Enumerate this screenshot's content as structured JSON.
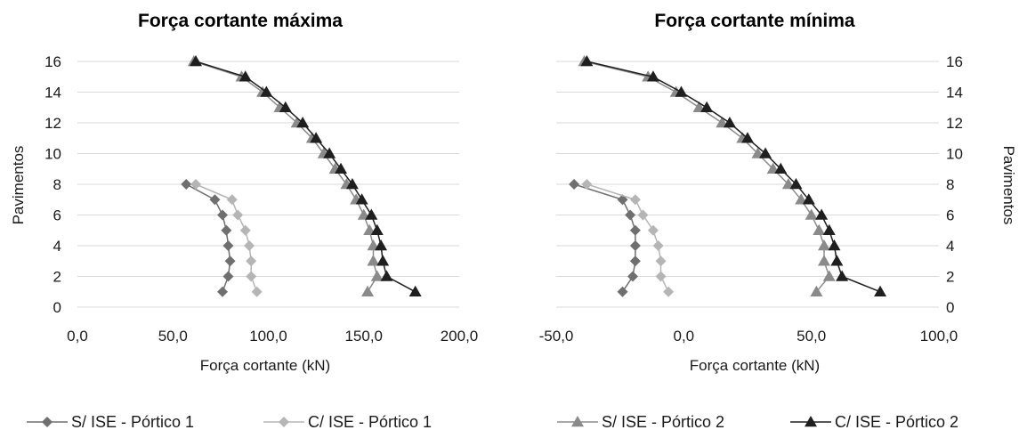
{
  "chart_data": [
    {
      "type": "line",
      "title": "Força cortante máxima",
      "xlabel": "Força cortante (kN)",
      "ylabel": "Pavimentos",
      "xlim": [
        0,
        200
      ],
      "ylim": [
        0,
        16
      ],
      "x_ticks": [
        "0,0",
        "50,0",
        "100,0",
        "150,0",
        "200,0"
      ],
      "y_ticks": [
        "0",
        "2",
        "4",
        "6",
        "8",
        "10",
        "12",
        "14",
        "16"
      ],
      "grid": "horizontal",
      "series": [
        {
          "name": "S/ ISE - Pórtico 1",
          "marker": "diamond",
          "color": "#6f6f6f",
          "points": [
            [
              76,
              1
            ],
            [
              79,
              2
            ],
            [
              80,
              3
            ],
            [
              79,
              4
            ],
            [
              78,
              5
            ],
            [
              76,
              6
            ],
            [
              72,
              7
            ],
            [
              57,
              8
            ]
          ]
        },
        {
          "name": "C/ ISE - Pórtico 1",
          "marker": "diamond",
          "color": "#b5b5b5",
          "points": [
            [
              94,
              1
            ],
            [
              91,
              2
            ],
            [
              91,
              3
            ],
            [
              90,
              4
            ],
            [
              88,
              5
            ],
            [
              84,
              6
            ],
            [
              81,
              7
            ],
            [
              62,
              8
            ]
          ]
        },
        {
          "name": "S/ ISE - Pórtico 2",
          "marker": "triangle",
          "color": "#8a8a8a",
          "points": [
            [
              152,
              1
            ],
            [
              157,
              2
            ],
            [
              155,
              3
            ],
            [
              155,
              4
            ],
            [
              153,
              5
            ],
            [
              150,
              6
            ],
            [
              146,
              7
            ],
            [
              141,
              8
            ],
            [
              135,
              9
            ],
            [
              129,
              10
            ],
            [
              123,
              11
            ],
            [
              115,
              12
            ],
            [
              106,
              13
            ],
            [
              97,
              14
            ],
            [
              86,
              15
            ],
            [
              61,
              16
            ]
          ]
        },
        {
          "name": "C/ ISE - Pórtico 2",
          "marker": "triangle",
          "color": "#1f1f1f",
          "points": [
            [
              177,
              1
            ],
            [
              162,
              2
            ],
            [
              160,
              3
            ],
            [
              159,
              4
            ],
            [
              157,
              5
            ],
            [
              154,
              6
            ],
            [
              149,
              7
            ],
            [
              144,
              8
            ],
            [
              138,
              9
            ],
            [
              132,
              10
            ],
            [
              125,
              11
            ],
            [
              118,
              12
            ],
            [
              109,
              13
            ],
            [
              99,
              14
            ],
            [
              88,
              15
            ],
            [
              62,
              16
            ]
          ]
        }
      ]
    },
    {
      "type": "line",
      "title": "Força cortante mínima",
      "xlabel": "Força cortante (kN)",
      "ylabel": "Pavimentos",
      "xlim": [
        -50,
        100
      ],
      "ylim": [
        0,
        16
      ],
      "x_ticks": [
        "-50,0",
        "0,0",
        "50,0",
        "100,0"
      ],
      "y_ticks": [
        "0",
        "2",
        "4",
        "6",
        "8",
        "10",
        "12",
        "14",
        "16"
      ],
      "grid": "horizontal",
      "series": [
        {
          "name": "S/ ISE - Pórtico 1",
          "marker": "diamond",
          "color": "#6f6f6f",
          "points": [
            [
              -24,
              1
            ],
            [
              -20,
              2
            ],
            [
              -19,
              3
            ],
            [
              -19,
              4
            ],
            [
              -19,
              5
            ],
            [
              -21,
              6
            ],
            [
              -24,
              7
            ],
            [
              -43,
              8
            ]
          ]
        },
        {
          "name": "C/ ISE - Pórtico 1",
          "marker": "diamond",
          "color": "#b5b5b5",
          "points": [
            [
              -6,
              1
            ],
            [
              -9,
              2
            ],
            [
              -9,
              3
            ],
            [
              -10,
              4
            ],
            [
              -12,
              5
            ],
            [
              -16,
              6
            ],
            [
              -19,
              7
            ],
            [
              -38,
              8
            ]
          ]
        },
        {
          "name": "S/ ISE - Pórtico 2",
          "marker": "triangle",
          "color": "#8a8a8a",
          "points": [
            [
              52,
              1
            ],
            [
              57,
              2
            ],
            [
              55,
              3
            ],
            [
              55,
              4
            ],
            [
              53,
              5
            ],
            [
              50,
              6
            ],
            [
              46,
              7
            ],
            [
              41,
              8
            ],
            [
              35,
              9
            ],
            [
              29,
              10
            ],
            [
              23,
              11
            ],
            [
              15,
              12
            ],
            [
              6,
              13
            ],
            [
              -3,
              14
            ],
            [
              -14,
              15
            ],
            [
              -39,
              16
            ]
          ]
        },
        {
          "name": "C/ ISE - Pórtico 2",
          "marker": "triangle",
          "color": "#1f1f1f",
          "points": [
            [
              77,
              1
            ],
            [
              62,
              2
            ],
            [
              60,
              3
            ],
            [
              59,
              4
            ],
            [
              57,
              5
            ],
            [
              54,
              6
            ],
            [
              49,
              7
            ],
            [
              44,
              8
            ],
            [
              38,
              9
            ],
            [
              32,
              10
            ],
            [
              25,
              11
            ],
            [
              18,
              12
            ],
            [
              9,
              13
            ],
            [
              -1,
              14
            ],
            [
              -12,
              15
            ],
            [
              -38,
              16
            ]
          ]
        }
      ]
    }
  ]
}
